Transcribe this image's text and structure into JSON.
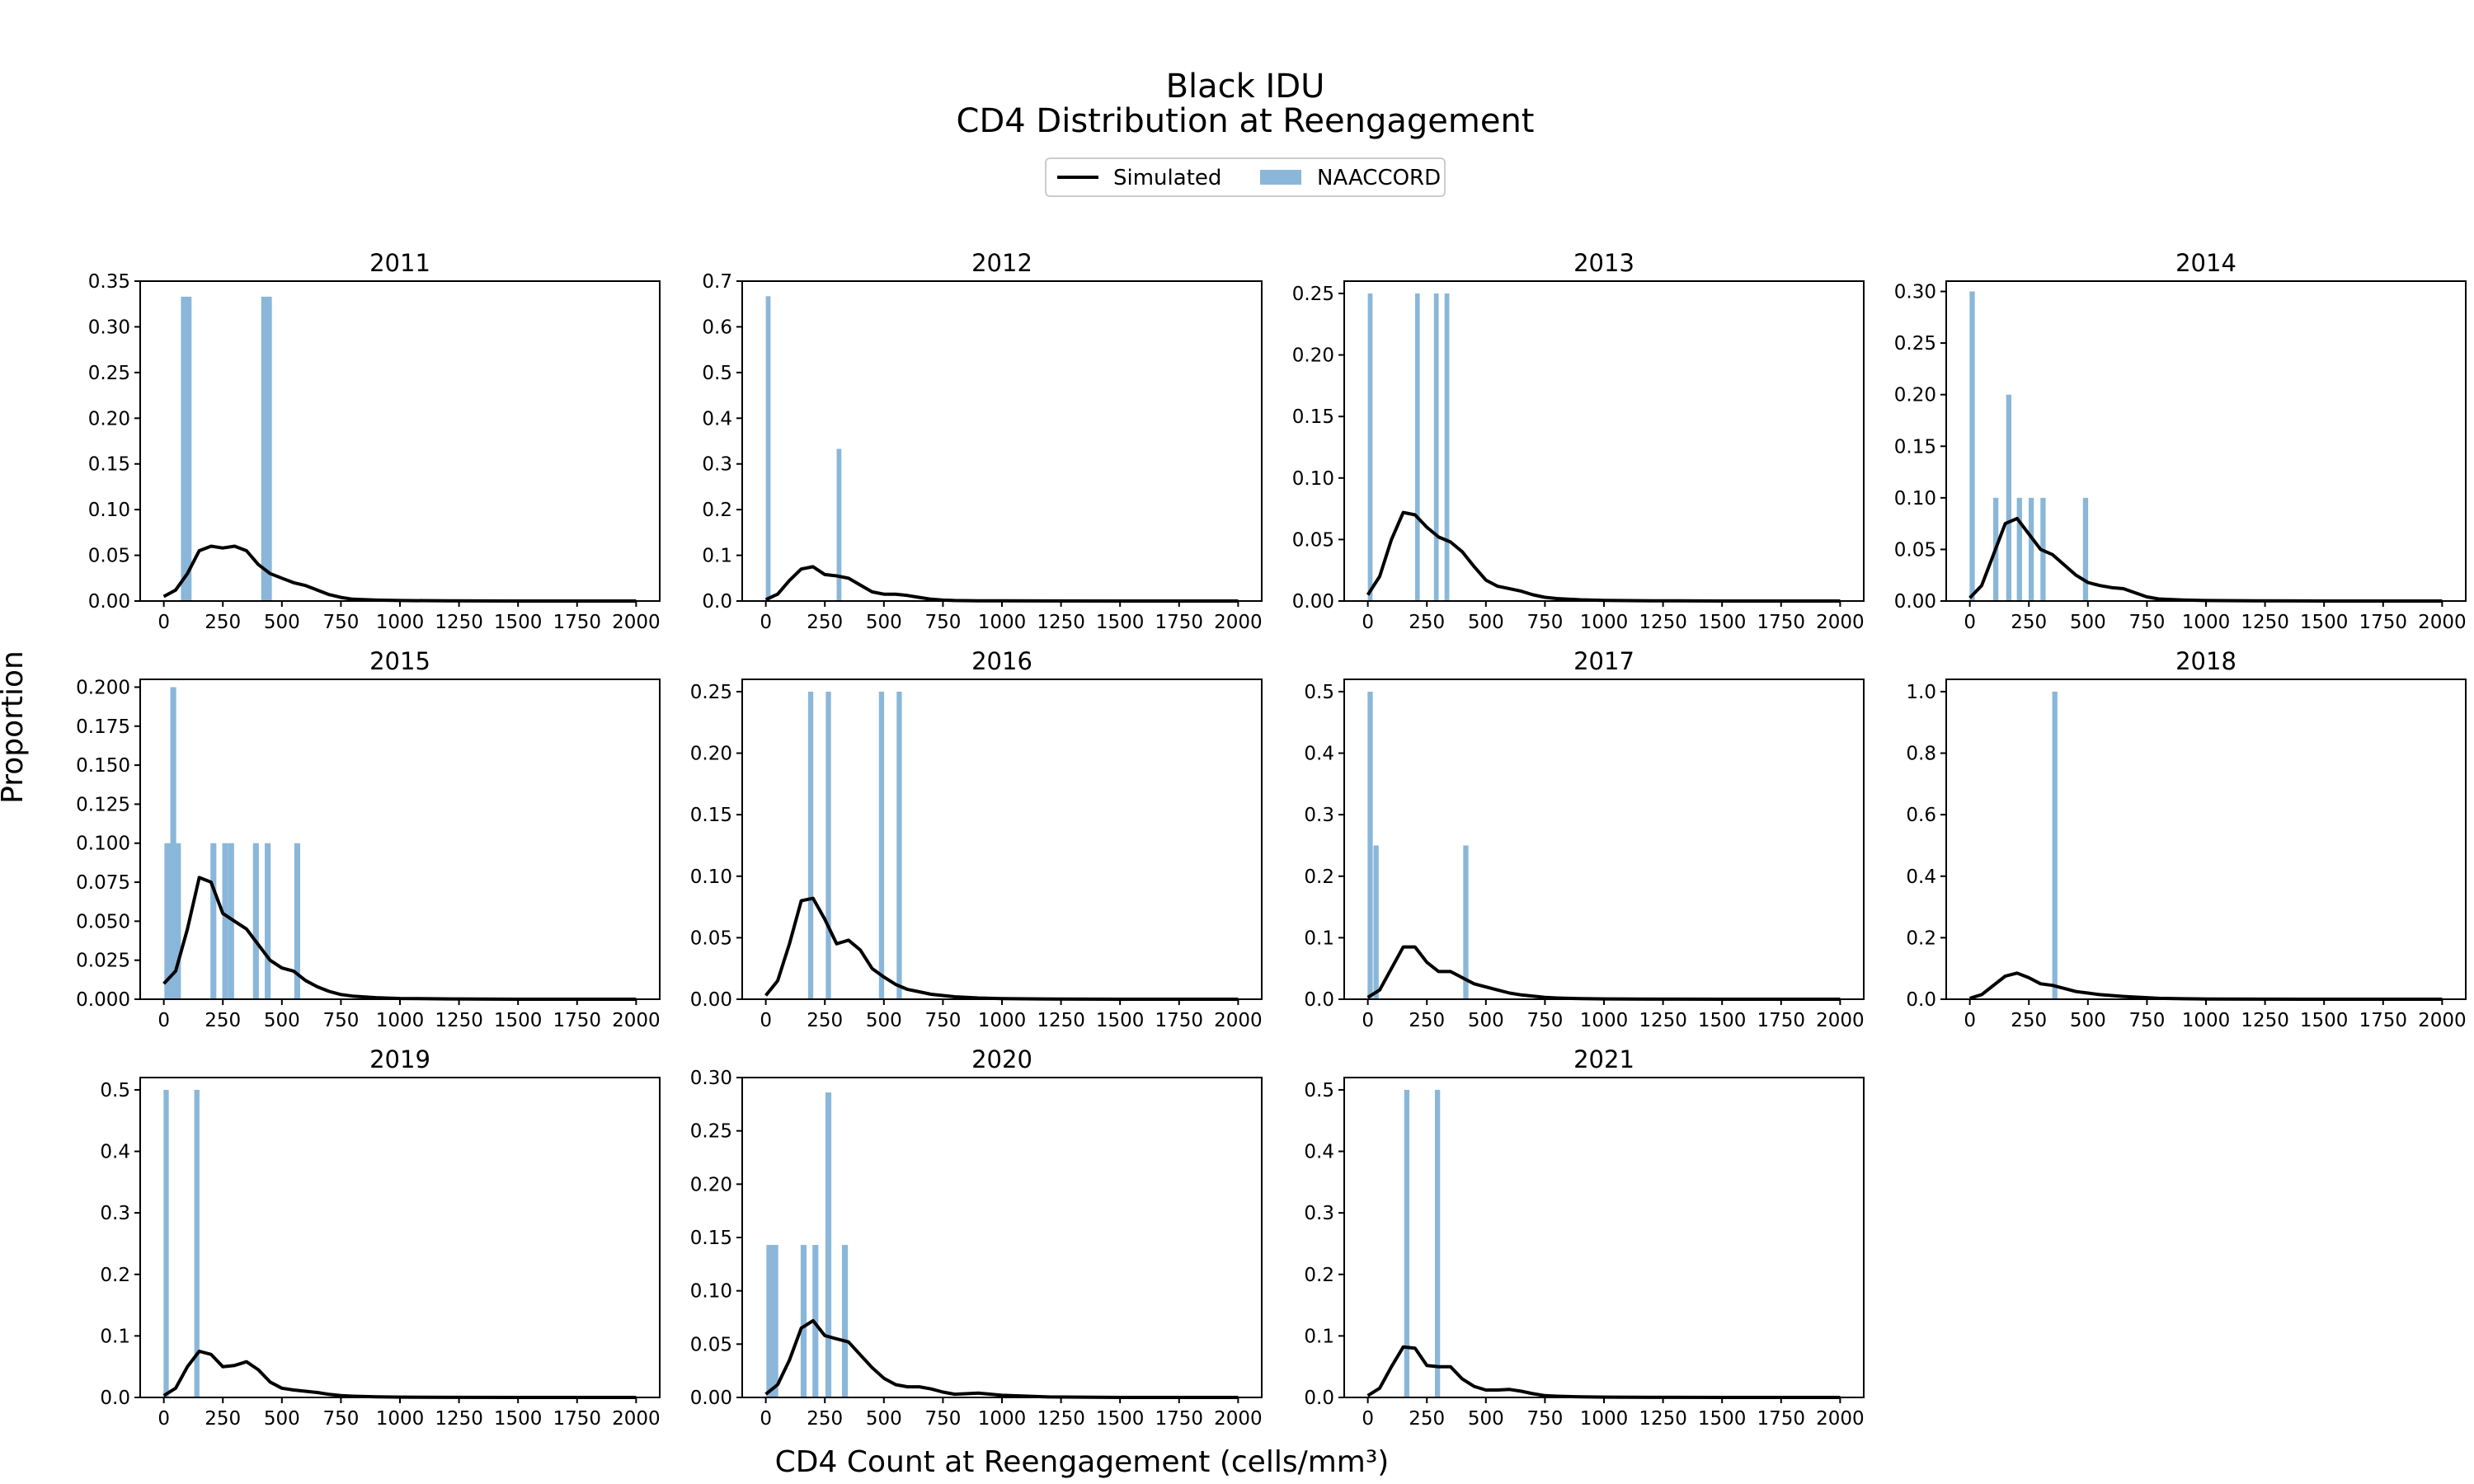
{
  "figure": {
    "title_line1": "Black IDU",
    "title_line2": "CD4 Distribution at Reengagement",
    "xlabel": "CD4 Count at Reengagement (cells/mm³)",
    "ylabel": "Proportion"
  },
  "legend": {
    "placement": "top-center",
    "items": [
      {
        "label": "Simulated",
        "kind": "line",
        "color": "#000000"
      },
      {
        "label": "NAACCORD",
        "kind": "bar",
        "color": "#8ab7d9"
      }
    ]
  },
  "colors": {
    "bars": "#8ab7d9",
    "line": "#000000"
  },
  "chart_data": [
    {
      "type": "bar",
      "title": "2011",
      "xlim": [
        -100,
        2100
      ],
      "ylim": [
        0,
        0.35
      ],
      "xticks": [
        0,
        250,
        500,
        750,
        1000,
        1250,
        1500,
        1750,
        2000
      ],
      "yticks": [
        0.0,
        0.05,
        0.1,
        0.15,
        0.2,
        0.25,
        0.3,
        0.35
      ],
      "ytick_labels": [
        "0.00",
        "0.05",
        "0.10",
        "0.15",
        "0.20",
        "0.25",
        "0.30",
        "0.35"
      ],
      "naaccord": {
        "x": [
          95,
          435
        ],
        "values": [
          0.333,
          0.333
        ],
        "width": 45
      },
      "simulated": {
        "x": [
          0,
          50,
          100,
          150,
          200,
          250,
          300,
          350,
          400,
          450,
          500,
          550,
          600,
          650,
          700,
          750,
          800,
          900,
          1000,
          1200,
          1500,
          2000
        ],
        "y": [
          0.005,
          0.012,
          0.03,
          0.055,
          0.06,
          0.058,
          0.06,
          0.055,
          0.04,
          0.03,
          0.025,
          0.02,
          0.017,
          0.012,
          0.007,
          0.004,
          0.002,
          0.001,
          0.0005,
          0.0002,
          0,
          0
        ]
      }
    },
    {
      "type": "bar",
      "title": "2012",
      "xlim": [
        -100,
        2100
      ],
      "ylim": [
        0,
        0.7
      ],
      "xticks": [
        0,
        250,
        500,
        750,
        1000,
        1250,
        1500,
        1750,
        2000
      ],
      "yticks": [
        0.0,
        0.1,
        0.2,
        0.3,
        0.4,
        0.5,
        0.6,
        0.7
      ],
      "ytick_labels": [
        "0.0",
        "0.1",
        "0.2",
        "0.3",
        "0.4",
        "0.5",
        "0.6",
        "0.7"
      ],
      "naaccord": {
        "x": [
          10,
          310
        ],
        "values": [
          0.667,
          0.333
        ],
        "width": 20
      },
      "simulated": {
        "x": [
          0,
          50,
          100,
          150,
          200,
          250,
          300,
          350,
          400,
          450,
          500,
          550,
          600,
          650,
          700,
          750,
          800,
          900,
          1000,
          1200,
          1500,
          2000
        ],
        "y": [
          0.003,
          0.015,
          0.045,
          0.07,
          0.075,
          0.058,
          0.055,
          0.05,
          0.035,
          0.02,
          0.015,
          0.015,
          0.012,
          0.008,
          0.004,
          0.002,
          0.001,
          0.0005,
          0.0003,
          0.0001,
          0,
          0
        ]
      }
    },
    {
      "type": "bar",
      "title": "2013",
      "xlim": [
        -100,
        2100
      ],
      "ylim": [
        0,
        0.26
      ],
      "xticks": [
        0,
        250,
        500,
        750,
        1000,
        1250,
        1500,
        1750,
        2000
      ],
      "yticks": [
        0.0,
        0.05,
        0.1,
        0.15,
        0.2,
        0.25
      ],
      "ytick_labels": [
        "0.00",
        "0.05",
        "0.10",
        "0.15",
        "0.20",
        "0.25"
      ],
      "naaccord": {
        "x": [
          10,
          210,
          290,
          335
        ],
        "values": [
          0.25,
          0.25,
          0.25,
          0.25
        ],
        "width": 20
      },
      "simulated": {
        "x": [
          0,
          50,
          100,
          150,
          200,
          250,
          300,
          350,
          400,
          450,
          500,
          550,
          600,
          650,
          700,
          750,
          800,
          900,
          1000,
          1200,
          1500,
          2000
        ],
        "y": [
          0.005,
          0.02,
          0.05,
          0.072,
          0.07,
          0.06,
          0.052,
          0.048,
          0.04,
          0.028,
          0.017,
          0.012,
          0.01,
          0.008,
          0.005,
          0.003,
          0.002,
          0.001,
          0.0005,
          0.0002,
          0,
          0
        ]
      }
    },
    {
      "type": "bar",
      "title": "2014",
      "xlim": [
        -100,
        2100
      ],
      "ylim": [
        0,
        0.31
      ],
      "xticks": [
        0,
        250,
        500,
        750,
        1000,
        1250,
        1500,
        1750,
        2000
      ],
      "yticks": [
        0.0,
        0.05,
        0.1,
        0.15,
        0.2,
        0.25,
        0.3
      ],
      "ytick_labels": [
        "0.00",
        "0.05",
        "0.10",
        "0.15",
        "0.20",
        "0.25",
        "0.30"
      ],
      "naaccord": {
        "x": [
          10,
          110,
          165,
          210,
          260,
          310,
          490
        ],
        "values": [
          0.3,
          0.1,
          0.2,
          0.1,
          0.1,
          0.1,
          0.1
        ],
        "width": 22
      },
      "simulated": {
        "x": [
          0,
          50,
          100,
          150,
          200,
          250,
          300,
          350,
          400,
          450,
          500,
          550,
          600,
          650,
          700,
          750,
          800,
          900,
          1000,
          1200,
          1500,
          2000
        ],
        "y": [
          0.003,
          0.015,
          0.045,
          0.075,
          0.08,
          0.065,
          0.05,
          0.045,
          0.035,
          0.025,
          0.018,
          0.015,
          0.013,
          0.012,
          0.008,
          0.004,
          0.002,
          0.001,
          0.0005,
          0.0002,
          0,
          0
        ]
      }
    },
    {
      "type": "bar",
      "title": "2015",
      "xlim": [
        -100,
        2100
      ],
      "ylim": [
        0,
        0.205
      ],
      "xticks": [
        0,
        250,
        500,
        750,
        1000,
        1250,
        1500,
        1750,
        2000
      ],
      "yticks": [
        0.0,
        0.025,
        0.05,
        0.075,
        0.1,
        0.125,
        0.15,
        0.175,
        0.2
      ],
      "ytick_labels": [
        "0.000",
        "0.025",
        "0.050",
        "0.075",
        "0.100",
        "0.125",
        "0.150",
        "0.175",
        "0.200"
      ],
      "naaccord": {
        "x": [
          15,
          40,
          60,
          210,
          260,
          285,
          390,
          440,
          565
        ],
        "values": [
          0.1,
          0.2,
          0.1,
          0.1,
          0.1,
          0.1,
          0.1,
          0.1,
          0.1
        ],
        "width": 25
      },
      "simulated": {
        "x": [
          0,
          50,
          100,
          150,
          200,
          250,
          300,
          350,
          400,
          450,
          500,
          550,
          600,
          650,
          700,
          750,
          800,
          900,
          1000,
          1200,
          1500,
          2000
        ],
        "y": [
          0.01,
          0.018,
          0.045,
          0.078,
          0.075,
          0.055,
          0.05,
          0.045,
          0.035,
          0.025,
          0.02,
          0.018,
          0.012,
          0.008,
          0.005,
          0.003,
          0.002,
          0.001,
          0.0005,
          0.0002,
          0,
          0
        ]
      }
    },
    {
      "type": "bar",
      "title": "2016",
      "xlim": [
        -100,
        2100
      ],
      "ylim": [
        0,
        0.26
      ],
      "xticks": [
        0,
        250,
        500,
        750,
        1000,
        1250,
        1500,
        1750,
        2000
      ],
      "yticks": [
        0.0,
        0.05,
        0.1,
        0.15,
        0.2,
        0.25
      ],
      "ytick_labels": [
        "0.00",
        "0.05",
        "0.10",
        "0.15",
        "0.20",
        "0.25"
      ],
      "naaccord": {
        "x": [
          190,
          265,
          490,
          565
        ],
        "values": [
          0.25,
          0.25,
          0.25,
          0.25
        ],
        "width": 22
      },
      "simulated": {
        "x": [
          0,
          50,
          100,
          150,
          200,
          250,
          300,
          350,
          400,
          450,
          500,
          550,
          600,
          650,
          700,
          750,
          800,
          900,
          1000,
          1200,
          1500,
          2000
        ],
        "y": [
          0.003,
          0.015,
          0.045,
          0.08,
          0.082,
          0.065,
          0.045,
          0.048,
          0.04,
          0.025,
          0.018,
          0.012,
          0.008,
          0.006,
          0.004,
          0.003,
          0.002,
          0.001,
          0.0005,
          0.0002,
          0,
          0
        ]
      }
    },
    {
      "type": "bar",
      "title": "2017",
      "xlim": [
        -100,
        2100
      ],
      "ylim": [
        0,
        0.52
      ],
      "xticks": [
        0,
        250,
        500,
        750,
        1000,
        1250,
        1500,
        1750,
        2000
      ],
      "yticks": [
        0.0,
        0.1,
        0.2,
        0.3,
        0.4,
        0.5
      ],
      "ytick_labels": [
        "0.0",
        "0.1",
        "0.2",
        "0.3",
        "0.4",
        "0.5"
      ],
      "naaccord": {
        "x": [
          10,
          35,
          415
        ],
        "values": [
          0.5,
          0.25,
          0.25
        ],
        "width": 22
      },
      "simulated": {
        "x": [
          0,
          50,
          100,
          150,
          200,
          250,
          300,
          350,
          400,
          450,
          500,
          550,
          600,
          650,
          700,
          750,
          800,
          900,
          1000,
          1200,
          1500,
          2000
        ],
        "y": [
          0.003,
          0.015,
          0.05,
          0.085,
          0.085,
          0.06,
          0.045,
          0.045,
          0.035,
          0.025,
          0.02,
          0.015,
          0.01,
          0.007,
          0.005,
          0.003,
          0.002,
          0.001,
          0.0005,
          0.0002,
          0,
          0
        ]
      }
    },
    {
      "type": "bar",
      "title": "2018",
      "xlim": [
        -100,
        2100
      ],
      "ylim": [
        0,
        1.04
      ],
      "xticks": [
        0,
        250,
        500,
        750,
        1000,
        1250,
        1500,
        1750,
        2000
      ],
      "yticks": [
        0.0,
        0.2,
        0.4,
        0.6,
        0.8,
        1.0
      ],
      "ytick_labels": [
        "0.0",
        "0.2",
        "0.4",
        "0.6",
        "0.8",
        "1.0"
      ],
      "naaccord": {
        "x": [
          360
        ],
        "values": [
          1.0
        ],
        "width": 22
      },
      "simulated": {
        "x": [
          0,
          50,
          100,
          150,
          200,
          250,
          300,
          350,
          400,
          450,
          500,
          550,
          600,
          650,
          700,
          750,
          800,
          900,
          1000,
          1200,
          1500,
          2000
        ],
        "y": [
          0.003,
          0.015,
          0.045,
          0.075,
          0.085,
          0.07,
          0.05,
          0.045,
          0.035,
          0.025,
          0.02,
          0.015,
          0.012,
          0.009,
          0.007,
          0.005,
          0.003,
          0.0015,
          0.0008,
          0.0003,
          0,
          0
        ]
      }
    },
    {
      "type": "bar",
      "title": "2019",
      "xlim": [
        -100,
        2100
      ],
      "ylim": [
        0,
        0.52
      ],
      "xticks": [
        0,
        250,
        500,
        750,
        1000,
        1250,
        1500,
        1750,
        2000
      ],
      "yticks": [
        0.0,
        0.1,
        0.2,
        0.3,
        0.4,
        0.5
      ],
      "ytick_labels": [
        "0.0",
        "0.1",
        "0.2",
        "0.3",
        "0.4",
        "0.5"
      ],
      "naaccord": {
        "x": [
          10,
          140
        ],
        "values": [
          0.5,
          0.5
        ],
        "width": 22
      },
      "simulated": {
        "x": [
          0,
          50,
          100,
          150,
          200,
          250,
          300,
          350,
          400,
          450,
          500,
          550,
          600,
          650,
          700,
          750,
          800,
          900,
          1000,
          1200,
          1500,
          2000
        ],
        "y": [
          0.003,
          0.015,
          0.05,
          0.075,
          0.07,
          0.05,
          0.052,
          0.058,
          0.045,
          0.025,
          0.015,
          0.012,
          0.01,
          0.008,
          0.005,
          0.003,
          0.002,
          0.001,
          0.0005,
          0.0002,
          0,
          0
        ]
      }
    },
    {
      "type": "bar",
      "title": "2020",
      "xlim": [
        -100,
        2100
      ],
      "ylim": [
        0,
        0.3
      ],
      "xticks": [
        0,
        250,
        500,
        750,
        1000,
        1250,
        1500,
        1750,
        2000
      ],
      "yticks": [
        0.0,
        0.05,
        0.1,
        0.15,
        0.2,
        0.25,
        0.3
      ],
      "ytick_labels": [
        "0.00",
        "0.05",
        "0.10",
        "0.15",
        "0.20",
        "0.25",
        "0.30"
      ],
      "naaccord": {
        "x": [
          15,
          40,
          160,
          210,
          265,
          335
        ],
        "values": [
          0.143,
          0.143,
          0.143,
          0.143,
          0.286,
          0.143
        ],
        "width": 25
      },
      "simulated": {
        "x": [
          0,
          50,
          100,
          150,
          200,
          250,
          300,
          350,
          400,
          450,
          500,
          550,
          600,
          650,
          700,
          750,
          800,
          900,
          1000,
          1200,
          1500,
          2000
        ],
        "y": [
          0.003,
          0.012,
          0.035,
          0.065,
          0.072,
          0.058,
          0.055,
          0.052,
          0.04,
          0.028,
          0.018,
          0.012,
          0.01,
          0.01,
          0.008,
          0.005,
          0.003,
          0.004,
          0.002,
          0.0005,
          0,
          0
        ]
      }
    },
    {
      "type": "bar",
      "title": "2021",
      "xlim": [
        -100,
        2100
      ],
      "ylim": [
        0,
        0.52
      ],
      "xticks": [
        0,
        250,
        500,
        750,
        1000,
        1250,
        1500,
        1750,
        2000
      ],
      "yticks": [
        0.0,
        0.1,
        0.2,
        0.3,
        0.4,
        0.5
      ],
      "ytick_labels": [
        "0.0",
        "0.1",
        "0.2",
        "0.3",
        "0.4",
        "0.5"
      ],
      "naaccord": {
        "x": [
          165,
          295
        ],
        "values": [
          0.5,
          0.5
        ],
        "width": 22
      },
      "simulated": {
        "x": [
          0,
          50,
          100,
          150,
          200,
          250,
          300,
          350,
          400,
          450,
          500,
          550,
          600,
          650,
          700,
          750,
          800,
          900,
          1000,
          1200,
          1500,
          2000
        ],
        "y": [
          0.003,
          0.015,
          0.05,
          0.082,
          0.08,
          0.052,
          0.05,
          0.05,
          0.03,
          0.018,
          0.012,
          0.012,
          0.013,
          0.01,
          0.006,
          0.003,
          0.002,
          0.001,
          0.0005,
          0.0002,
          0,
          0
        ]
      }
    }
  ]
}
